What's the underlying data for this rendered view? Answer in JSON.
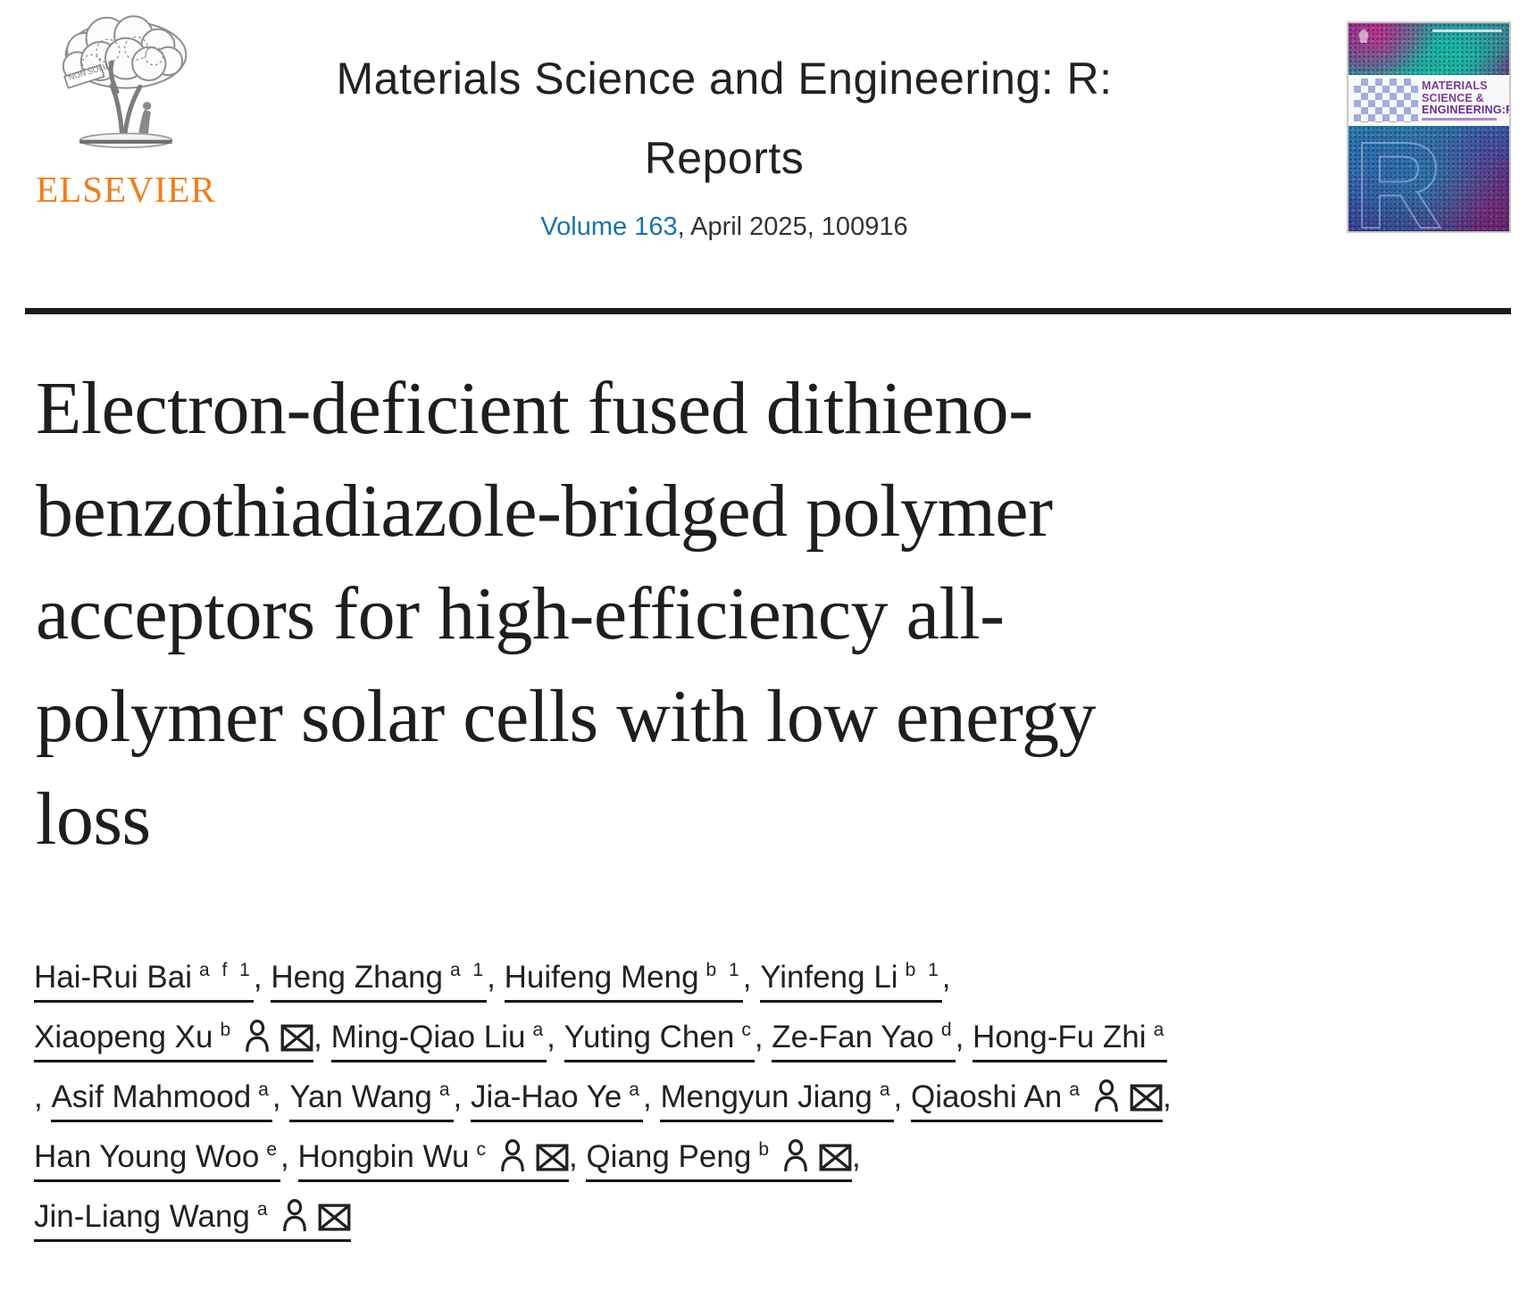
{
  "header": {
    "publisher": "ELSEVIER",
    "logo_motto": "NON SOLUS",
    "journal_title_lines": [
      "Materials Science and Engineering: R:",
      "Reports"
    ],
    "volume_link": "Volume 163",
    "issue_suffix": ", April 2025, 100916"
  },
  "cover": {
    "title_line1": "MATERIALS",
    "title_line2": "SCIENCE &",
    "title_line3": "ENGINEERING:R",
    "watermark_letter": "R"
  },
  "article": {
    "title_lines": [
      "Electron-deficient fused dithieno-",
      "benzothiadiazole-bridged polymer",
      "acceptors for high-efficiency all-",
      "polymer solar cells with low energy",
      "loss"
    ]
  },
  "authors": {
    "lines": [
      [
        {
          "name": "Hai-Rui Bai",
          "sup": "a f 1",
          "trail": ", "
        },
        {
          "name": "Heng Zhang",
          "sup": "a 1",
          "trail": ", "
        },
        {
          "name": "Huifeng Meng",
          "sup": "b 1",
          "trail": ", "
        },
        {
          "name": "Yinfeng Li",
          "sup": "b 1",
          "trail": ","
        }
      ],
      [
        {
          "name": "Xiaopeng Xu",
          "sup": "b",
          "person": true,
          "mail": true,
          "trail": ", "
        },
        {
          "name": "Ming-Qiao Liu",
          "sup": "a",
          "trail": ", "
        },
        {
          "name": "Yuting Chen",
          "sup": "c",
          "trail": ", "
        },
        {
          "name": "Ze-Fan Yao",
          "sup": "d",
          "trail": ", "
        },
        {
          "name": "Hong-Fu Zhi",
          "sup": "a",
          "trail": ""
        }
      ],
      [
        {
          "pre": ", ",
          "name": "Asif Mahmood",
          "sup": "a",
          "trail": ", "
        },
        {
          "name": "Yan Wang",
          "sup": "a",
          "trail": ", "
        },
        {
          "name": "Jia-Hao Ye",
          "sup": "a",
          "trail": ", "
        },
        {
          "name": "Mengyun Jiang",
          "sup": "a",
          "trail": ", "
        },
        {
          "name": "Qiaoshi An",
          "sup": "a",
          "person": true,
          "mail": true,
          "trail": ","
        }
      ],
      [
        {
          "name": "Han Young Woo",
          "sup": "e",
          "trail": ", "
        },
        {
          "name": "Hongbin Wu",
          "sup": "c",
          "person": true,
          "mail": true,
          "trail": ", "
        },
        {
          "name": "Qiang Peng",
          "sup": "b",
          "person": true,
          "mail": true,
          "trail": ","
        }
      ],
      [
        {
          "name": "Jin-Liang Wang",
          "sup": "a",
          "person": true,
          "mail": true,
          "trail": ""
        }
      ]
    ]
  },
  "icons": {
    "person": "person-outline-icon",
    "mail": "envelope-icon"
  },
  "colors": {
    "elsevier_orange": "#EF7F1A",
    "link_blue": "#1D72AA",
    "text_dark": "#212121",
    "cover_band_purple": "#7D3A96"
  }
}
